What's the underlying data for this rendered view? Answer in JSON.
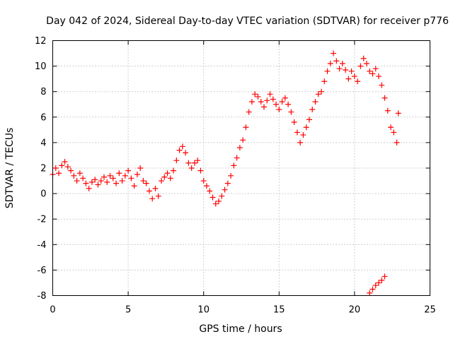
{
  "chart_data": {
    "type": "scatter",
    "title": "Day 042 of 2024, Sidereal Day-to-day VTEC variation (SDTVAR) for receiver p776",
    "xlabel": "GPS time / hours",
    "ylabel": "SDTVAR / TECUs",
    "xlim": [
      0,
      25
    ],
    "ylim": [
      -8,
      12
    ],
    "xticks": [
      0,
      5,
      10,
      15,
      20,
      25
    ],
    "yticks": [
      -8,
      -6,
      -4,
      -2,
      0,
      2,
      4,
      6,
      8,
      10,
      12
    ],
    "grid": true,
    "marker": "+",
    "marker_color": "#ff0000",
    "series": [
      {
        "name": "SDTVAR",
        "x": [
          0.0,
          0.2,
          0.4,
          0.6,
          0.8,
          1.0,
          1.2,
          1.4,
          1.6,
          1.8,
          2.0,
          2.2,
          2.4,
          2.6,
          2.8,
          3.0,
          3.2,
          3.4,
          3.6,
          3.8,
          4.0,
          4.2,
          4.4,
          4.6,
          4.8,
          5.0,
          5.2,
          5.4,
          5.6,
          5.8,
          6.0,
          6.2,
          6.4,
          6.6,
          6.8,
          7.0,
          7.2,
          7.4,
          7.6,
          7.8,
          8.0,
          8.2,
          8.4,
          8.6,
          8.8,
          9.0,
          9.2,
          9.4,
          9.6,
          9.8,
          10.0,
          10.2,
          10.4,
          10.6,
          10.8,
          11.0,
          11.2,
          11.4,
          11.6,
          11.8,
          12.0,
          12.2,
          12.4,
          12.6,
          12.8,
          13.0,
          13.2,
          13.4,
          13.6,
          13.8,
          14.0,
          14.2,
          14.4,
          14.6,
          14.8,
          15.0,
          15.2,
          15.4,
          15.6,
          15.8,
          16.0,
          16.2,
          16.4,
          16.6,
          16.8,
          17.0,
          17.2,
          17.4,
          17.6,
          17.8,
          18.0,
          18.2,
          18.4,
          18.6,
          18.8,
          19.0,
          19.2,
          19.4,
          19.6,
          19.8,
          20.0,
          20.2,
          20.4,
          20.6,
          20.8,
          21.0,
          21.2,
          21.4,
          21.6,
          21.8,
          22.0,
          22.2,
          22.4,
          22.6,
          22.8,
          22.9,
          21.0,
          21.2,
          21.4,
          21.6,
          21.8,
          22.0
        ],
        "values": [
          1.5,
          2.0,
          1.6,
          2.2,
          2.5,
          2.1,
          1.8,
          1.4,
          1.0,
          1.6,
          1.2,
          0.8,
          0.4,
          0.9,
          1.1,
          0.7,
          1.0,
          1.3,
          0.9,
          1.4,
          1.2,
          0.8,
          1.6,
          1.0,
          1.4,
          1.8,
          1.2,
          0.6,
          1.5,
          2.0,
          1.0,
          0.8,
          0.2,
          -0.4,
          0.4,
          -0.2,
          1.0,
          1.3,
          1.6,
          1.2,
          1.8,
          2.6,
          3.4,
          3.7,
          3.2,
          2.4,
          2.0,
          2.4,
          2.6,
          1.8,
          1.0,
          0.6,
          0.2,
          -0.3,
          -0.8,
          -0.6,
          -0.2,
          0.3,
          0.8,
          1.4,
          2.2,
          2.8,
          3.6,
          4.2,
          5.2,
          6.4,
          7.2,
          7.8,
          7.6,
          7.2,
          6.8,
          7.3,
          7.8,
          7.4,
          7.0,
          6.6,
          7.2,
          7.5,
          7.0,
          6.4,
          5.6,
          4.8,
          4.0,
          4.6,
          5.2,
          5.8,
          6.6,
          7.2,
          7.8,
          8.0,
          8.8,
          9.6,
          10.2,
          11.0,
          10.4,
          9.8,
          10.2,
          9.7,
          9.0,
          9.6,
          9.2,
          8.8,
          10.0,
          10.6,
          10.2,
          9.6,
          9.4,
          9.8,
          9.2,
          8.5,
          7.5,
          6.5,
          5.2,
          4.8,
          4.0,
          6.3,
          -7.8,
          -7.5,
          -7.2,
          -7.0,
          -6.8,
          -6.5
        ]
      }
    ]
  }
}
